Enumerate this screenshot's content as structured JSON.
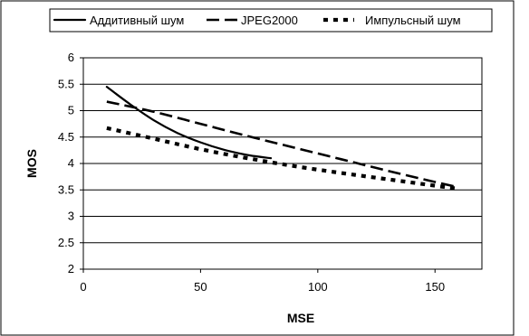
{
  "chart_data": {
    "type": "line",
    "title": "",
    "xlabel": "MSE",
    "ylabel": "MOS",
    "xlim": [
      0,
      170
    ],
    "ylim": [
      2,
      6
    ],
    "xticks": [
      0,
      50,
      100,
      150
    ],
    "yticks": [
      2,
      2.5,
      3,
      3.5,
      4,
      4.5,
      5,
      5.5,
      6
    ],
    "xtick_labels": [
      "0",
      "50",
      "100",
      "150"
    ],
    "ytick_labels": [
      "2",
      "2.5",
      "3",
      "3.5",
      "4",
      "4.5",
      "5",
      "5.5",
      "6"
    ],
    "grid": "horizontal",
    "legend_position": "top",
    "series": [
      {
        "name": "Аддитивный шум",
        "style": "solid",
        "color": "#000000",
        "x": [
          10,
          20,
          30,
          40,
          50,
          60,
          70,
          80
        ],
        "y": [
          5.45,
          5.12,
          4.82,
          4.58,
          4.4,
          4.26,
          4.16,
          4.1
        ]
      },
      {
        "name": "JPEG2000",
        "style": "dashed",
        "color": "#000000",
        "x": [
          10,
          30,
          50,
          70,
          90,
          110,
          130,
          150,
          160
        ],
        "y": [
          5.17,
          4.98,
          4.75,
          4.52,
          4.3,
          4.08,
          3.86,
          3.65,
          3.55
        ]
      },
      {
        "name": "Импульсный шум",
        "style": "dotted",
        "color": "#000000",
        "x": [
          10,
          30,
          50,
          70,
          90,
          110,
          130,
          150,
          160
        ],
        "y": [
          4.67,
          4.47,
          4.27,
          4.1,
          3.95,
          3.82,
          3.7,
          3.58,
          3.52
        ]
      }
    ]
  }
}
